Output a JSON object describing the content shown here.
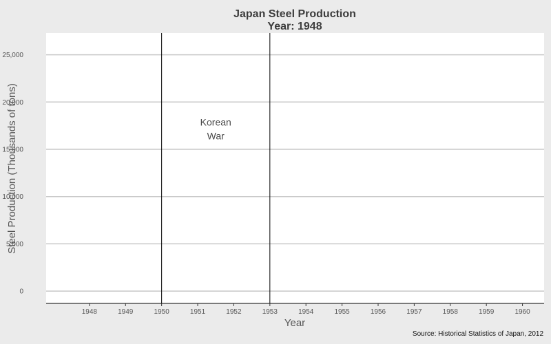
{
  "chart_data": {
    "type": "line",
    "title": "Japan Steel Production",
    "subtitle": "Year: 1948",
    "xlabel": "Year",
    "ylabel": "Steel Production (Thousands of tons)",
    "x_ticks": [
      "1948",
      "1949",
      "1950",
      "1951",
      "1952",
      "1953",
      "1954",
      "1955",
      "1956",
      "1957",
      "1958",
      "1959",
      "1960"
    ],
    "xlim": [
      1946.8,
      1960.6
    ],
    "ylim": [
      -1300,
      27300
    ],
    "y_ticks": [
      0,
      5000,
      10000,
      15000,
      20000,
      25000
    ],
    "y_tick_labels": [
      "0",
      "5,000",
      "10,000",
      "15,000",
      "20,000",
      "25,000"
    ],
    "grid": "horizontal",
    "series": [],
    "vlines": [
      1950,
      1953
    ],
    "annotations": [
      {
        "lines": [
          "Korean",
          "War"
        ],
        "x": 1951.5,
        "y": 17500
      }
    ],
    "caption": "Source: Historical Statistics of Japan, 2012"
  },
  "colors": {
    "background": "#ebebeb",
    "panel": "#ffffff",
    "gridline": "#c8c8c8",
    "vline": "#000000",
    "text": "#555555"
  }
}
